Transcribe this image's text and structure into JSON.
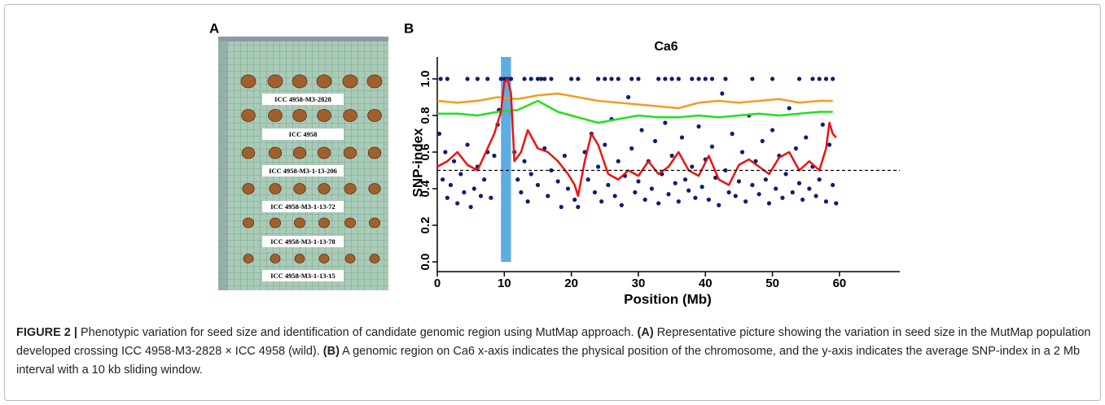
{
  "figure": {
    "panel_a": {
      "letter": "A",
      "labels": [
        "ICC 4958-M3-2828",
        "ICC 4958",
        "ICC 4958-M3-1-13-206",
        "ICC 4958-M3-1-13-72",
        "ICC 4958-M3-1-13-78",
        "ICC 4958-M3-1-13-15"
      ]
    },
    "panel_b": {
      "letter": "B"
    }
  },
  "chart_data": {
    "type": "scatter",
    "title": "Ca6",
    "x_label": "Position (Mb)",
    "y_label": "SNP-index",
    "xlim": [
      0,
      69
    ],
    "ylim": [
      0,
      1.12
    ],
    "xticks": [
      0,
      10,
      20,
      30,
      40,
      50,
      60
    ],
    "yticks": [
      {
        "value": 0,
        "label": "0.0"
      },
      0.2,
      0.4,
      0.6,
      0.8,
      {
        "value": 1,
        "label": "1.0"
      }
    ],
    "highlight": [
      9.5,
      11
    ],
    "highlight_color": "#5dade2",
    "threshold": 0.5,
    "series": [
      {
        "mode": "markers",
        "color": "#101c6e",
        "x": [
          0.5,
          1.5,
          4.5,
          6,
          7.5,
          9.5,
          10,
          10.5,
          11,
          13,
          14,
          15,
          15.5,
          16,
          17,
          20,
          21,
          24,
          25,
          26,
          27,
          29,
          30,
          33,
          34,
          35,
          36,
          38,
          39,
          40,
          41,
          43,
          47,
          50,
          54,
          56,
          57,
          58,
          59,
          0.3,
          0.8,
          1.2,
          1.5,
          2,
          2.5,
          3,
          3.5,
          4,
          4.5,
          5,
          5.5,
          6,
          6.5,
          7,
          7.5,
          8,
          8.5,
          9,
          9.2,
          11.5,
          12,
          12.5,
          13,
          13.5,
          14,
          15,
          16,
          16.5,
          17,
          18,
          18.5,
          19,
          19.5,
          20.5,
          21,
          22,
          22.5,
          23,
          23.5,
          24,
          24.5,
          25,
          25.5,
          26,
          26.5,
          27,
          27.5,
          28,
          28.5,
          29,
          29.5,
          30,
          30.5,
          31,
          31.5,
          32,
          32.5,
          33,
          33.5,
          34,
          34.5,
          35,
          35.5,
          36,
          36.5,
          37,
          37.5,
          38,
          38.5,
          39,
          39.5,
          40,
          40.5,
          41,
          41.5,
          42,
          42.5,
          43,
          43.5,
          44,
          44.5,
          45,
          45.5,
          46,
          46.5,
          47,
          47.5,
          48,
          48.5,
          49,
          49.5,
          50,
          50.5,
          51,
          51.5,
          52,
          52.5,
          53,
          53.5,
          54,
          54.5,
          55,
          55.5,
          56,
          56.5,
          57,
          57.5,
          58,
          58.5,
          59,
          59.5
        ],
        "values": [
          1,
          1,
          1,
          1,
          1,
          1,
          1,
          1,
          1,
          1,
          1,
          1,
          1,
          1,
          1,
          1,
          1,
          1,
          1,
          1,
          1,
          1,
          1,
          1,
          1,
          1,
          1,
          1,
          1,
          1,
          1,
          1,
          1,
          1,
          1,
          1,
          1,
          1,
          1,
          0.7,
          0.45,
          0.6,
          0.35,
          0.42,
          0.55,
          0.32,
          0.48,
          0.38,
          0.64,
          0.3,
          0.4,
          0.52,
          0.36,
          0.45,
          0.6,
          0.35,
          0.58,
          0.75,
          0.83,
          0.6,
          0.45,
          0.38,
          0.55,
          0.33,
          0.48,
          0.42,
          0.62,
          0.36,
          0.5,
          0.44,
          0.3,
          0.58,
          0.4,
          0.34,
          0.3,
          0.6,
          0.45,
          0.7,
          0.38,
          0.52,
          0.33,
          0.64,
          0.42,
          0.78,
          0.36,
          0.55,
          0.31,
          0.47,
          0.9,
          0.62,
          0.38,
          0.44,
          0.72,
          0.34,
          0.55,
          0.4,
          0.66,
          0.32,
          0.48,
          0.76,
          0.37,
          0.58,
          0.43,
          0.33,
          0.68,
          0.45,
          0.39,
          0.52,
          0.35,
          0.74,
          0.41,
          0.56,
          0.34,
          0.63,
          0.46,
          0.31,
          0.92,
          0.5,
          0.38,
          0.7,
          0.36,
          0.44,
          0.6,
          0.33,
          0.8,
          0.42,
          0.55,
          0.37,
          0.66,
          0.45,
          0.32,
          0.72,
          0.4,
          0.58,
          0.35,
          0.48,
          0.84,
          0.38,
          0.62,
          0.43,
          0.34,
          0.68,
          0.4,
          0.52,
          0.36,
          0.45,
          0.75,
          0.33,
          0.64,
          0.42,
          0.32
        ]
      },
      {
        "mode": "line",
        "color": "#f39c1f",
        "x": [
          0,
          3,
          6,
          9,
          12,
          15,
          18,
          21,
          24,
          27,
          30,
          33,
          36,
          39,
          42,
          45,
          48,
          51,
          54,
          57,
          59
        ],
        "values": [
          0.88,
          0.87,
          0.88,
          0.9,
          0.89,
          0.91,
          0.92,
          0.9,
          0.88,
          0.87,
          0.86,
          0.85,
          0.84,
          0.87,
          0.88,
          0.87,
          0.88,
          0.89,
          0.87,
          0.88,
          0.88
        ]
      },
      {
        "mode": "line",
        "color": "#22e01a",
        "x": [
          0,
          3,
          6,
          9,
          12,
          15,
          18,
          21,
          24,
          27,
          30,
          33,
          36,
          39,
          42,
          45,
          48,
          51,
          54,
          57,
          59
        ],
        "values": [
          0.81,
          0.81,
          0.8,
          0.82,
          0.83,
          0.88,
          0.82,
          0.79,
          0.76,
          0.78,
          0.8,
          0.79,
          0.79,
          0.8,
          0.79,
          0.8,
          0.81,
          0.8,
          0.81,
          0.82,
          0.82
        ]
      },
      {
        "mode": "line",
        "color": "#ee1111",
        "x": [
          0,
          1.5,
          3,
          4.5,
          6,
          7.5,
          8.5,
          9.5,
          10,
          10.5,
          11,
          11.5,
          12.5,
          13.5,
          15,
          16.5,
          18,
          19.5,
          20.5,
          21,
          22,
          23,
          24,
          25.5,
          27,
          28.5,
          30,
          31.5,
          33,
          34.5,
          36,
          37.5,
          39,
          40.5,
          42,
          43.5,
          45,
          46.5,
          48,
          49.5,
          51,
          52.5,
          54,
          55.5,
          57,
          58,
          58.5,
          59,
          59.5
        ],
        "values": [
          0.52,
          0.55,
          0.6,
          0.53,
          0.5,
          0.62,
          0.7,
          0.82,
          0.98,
          1.0,
          0.92,
          0.55,
          0.6,
          0.72,
          0.62,
          0.6,
          0.55,
          0.48,
          0.42,
          0.36,
          0.55,
          0.7,
          0.64,
          0.48,
          0.45,
          0.5,
          0.47,
          0.55,
          0.48,
          0.52,
          0.6,
          0.5,
          0.47,
          0.58,
          0.45,
          0.42,
          0.53,
          0.56,
          0.52,
          0.48,
          0.57,
          0.6,
          0.5,
          0.55,
          0.5,
          0.62,
          0.76,
          0.7,
          0.68
        ]
      }
    ]
  },
  "caption": {
    "label": "FIGURE 2 |",
    "parts": [
      " Phenotypic variation for seed size and identification of candidate genomic region using MutMap approach. ",
      "(A)",
      " Representative picture showing the variation in seed size in the MutMap population developed crossing ICC 4958-M3-2828 × ICC 4958 (wild). ",
      "(B)",
      " A genomic region on Ca6 x-axis indicates the physical position of the chromosome, and the y-axis indicates the average SNP-index in a 2 Mb interval with a 10 kb sliding window."
    ]
  }
}
